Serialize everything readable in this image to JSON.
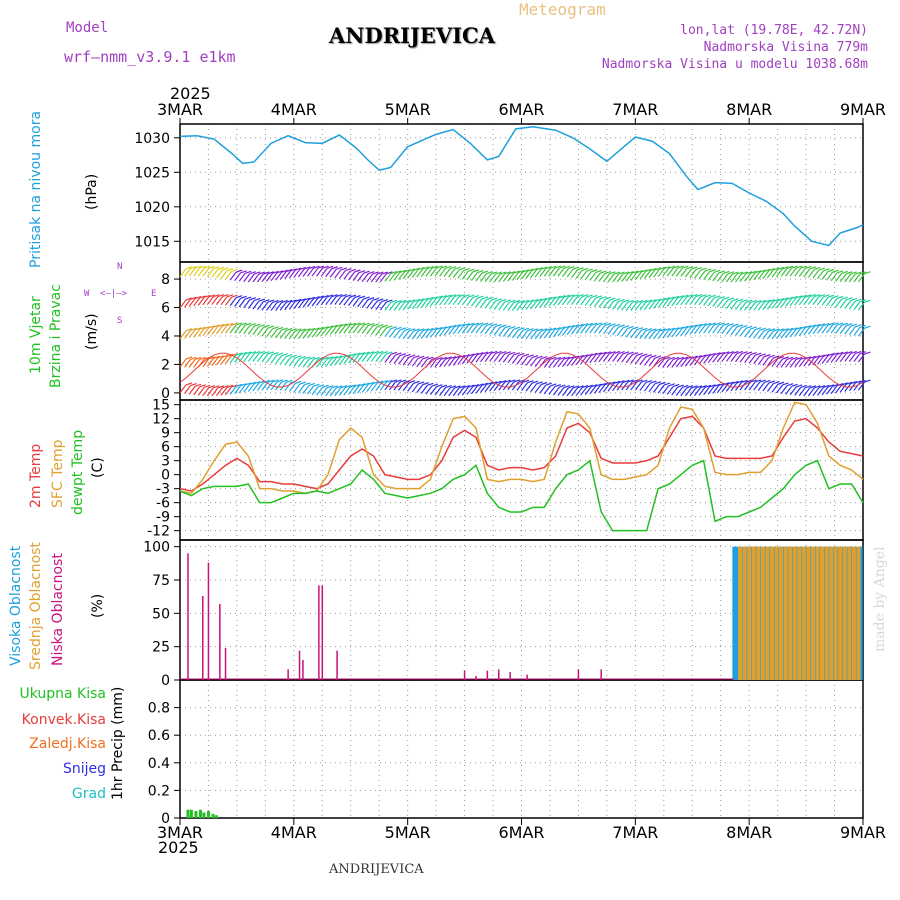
{
  "header": {
    "model_label": "Model",
    "model_name": "wrf—nmm_v3.9.1  e1km",
    "title": "ANDRIJEVICA",
    "meteogram_label": "Meteogram",
    "coords": "lon,lat (19.78E, 42.72N)",
    "elevation": "Nadmorska Visina 779m",
    "elevation_model": "Nadmorska Visina u modelu 1038.68m",
    "year_top": "2025",
    "year_bottom": "2025",
    "bottom_title": "ANDRIJEVICA",
    "credit": "made by Angel"
  },
  "colors": {
    "pressure": "#1ea0dc",
    "temp_2m": "#e83c3c",
    "temp_sfc": "#e0a030",
    "dewpoint": "#22c022",
    "cloud_high": "#1ea0dc",
    "cloud_mid": "#e0a030",
    "cloud_low": "#c8127a",
    "precip_total": "#22c022",
    "precip_conv": "#e83c3c",
    "precip_frz": "#f07020",
    "precip_snow": "#3030e0",
    "precip_grad": "#20c0c0",
    "model_purple": "#a040c0"
  },
  "x_axis": {
    "dates": [
      "3MAR",
      "4MAR",
      "5MAR",
      "6MAR",
      "7MAR",
      "8MAR",
      "9MAR"
    ]
  },
  "panels": {
    "pressure": {
      "label": "Pritisak na nivou mora",
      "unit": "(hPa)"
    },
    "wind": {
      "label1": "10m Vjetar",
      "label2": "Brzina i Pravac",
      "unit": "(m/s)",
      "compass_n": "N",
      "compass_s": "S",
      "compass_w": "W",
      "compass_e": "E",
      "compass_arrows": "<—|—>"
    },
    "temp": {
      "label_2m": "2m Temp",
      "label_sfc": "SFC Temp",
      "label_dew": "dewpt Temp",
      "unit": "(C)"
    },
    "cloud": {
      "label_high": "Visoka Oblacnost",
      "label_mid": "Srednja Oblacnost",
      "label_low": "Niska Oblacnost",
      "unit": "(%)"
    },
    "precip": {
      "label_total": "Ukupna Kisa",
      "label_conv": "Konvek.Kisa",
      "label_frz": "Zaledj.Kisa",
      "label_snow": "Snijeg",
      "label_grad": "Grad",
      "unit": "1hr Precip (mm)"
    }
  },
  "chart_data": [
    {
      "type": "line",
      "title": "Pritisak na nivou mora",
      "ylabel": "(hPa)",
      "ylim": [
        1012,
        1032
      ],
      "yticks": [
        1015,
        1020,
        1025,
        1030
      ],
      "x_unit": "days from 3MAR 00UTC",
      "series": [
        {
          "x": [
            0,
            0.15,
            0.3,
            0.45,
            0.55,
            0.65,
            0.8,
            0.95,
            1.1,
            1.25,
            1.4,
            1.55,
            1.65,
            1.75,
            1.85,
            2.0,
            2.15,
            2.25,
            2.4,
            2.55,
            2.7,
            2.8,
            2.95,
            3.1,
            3.3,
            3.45,
            3.6,
            3.75,
            3.85,
            4.0,
            4.15,
            4.3,
            4.45,
            4.55,
            4.7,
            4.85,
            5.0,
            5.15,
            5.3,
            5.4,
            5.55,
            5.7,
            5.8,
            5.95,
            6.0
          ],
          "values": [
            1030.2,
            1030.3,
            1029.8,
            1027.8,
            1026.3,
            1026.5,
            1029.2,
            1030.3,
            1029.3,
            1029.2,
            1030.4,
            1028.5,
            1026.8,
            1025.3,
            1025.7,
            1028.7,
            1029.8,
            1030.5,
            1031.2,
            1029.2,
            1026.8,
            1027.3,
            1031.3,
            1031.6,
            1031.1,
            1030.0,
            1028.4,
            1026.6,
            1028.0,
            1030.1,
            1029.5,
            1027.7,
            1024.4,
            1022.5,
            1023.5,
            1023.4,
            1022.0,
            1020.8,
            1019.0,
            1017.2,
            1015.0,
            1014.4,
            1016.2,
            1017.0,
            1017.4
          ]
        }
      ]
    },
    {
      "type": "barbs",
      "title": "10m Vjetar Brzina i Pravac",
      "ylabel": "(m/s)",
      "ylim": [
        -0.5,
        9.2
      ],
      "yticks": [
        0,
        2,
        4,
        6,
        8
      ],
      "note": "wind barbs at levels 0,2,4,6,8 with gusty speed trace"
    },
    {
      "type": "line",
      "title": "2m / SFC / dewpoint Temp",
      "ylabel": "(C)",
      "ylim": [
        -14,
        16
      ],
      "yticks": [
        -12,
        -9,
        -6,
        -3,
        0,
        3,
        6,
        9,
        12,
        15
      ],
      "x_unit": "days from 3MAR 00UTC",
      "series": [
        {
          "name": "2m Temp",
          "x": [
            0,
            0.1,
            0.2,
            0.3,
            0.4,
            0.5,
            0.6,
            0.7,
            0.8,
            0.9,
            1.0,
            1.1,
            1.2,
            1.3,
            1.4,
            1.5,
            1.6,
            1.7,
            1.8,
            1.9,
            2.0,
            2.1,
            2.2,
            2.3,
            2.4,
            2.5,
            2.6,
            2.7,
            2.8,
            2.9,
            3.0,
            3.1,
            3.2,
            3.3,
            3.4,
            3.5,
            3.6,
            3.7,
            3.8,
            3.9,
            4.0,
            4.1,
            4.2,
            4.3,
            4.4,
            4.5,
            4.6,
            4.7,
            4.8,
            4.9,
            5.0,
            5.1,
            5.2,
            5.3,
            5.4,
            5.5,
            5.6,
            5.7,
            5.8,
            5.9,
            6.0
          ],
          "values": [
            -3,
            -3.5,
            -2,
            0,
            2,
            3.5,
            2,
            -1.5,
            -1.5,
            -2,
            -2,
            -2.5,
            -3,
            -2,
            1,
            4,
            5.5,
            4,
            0,
            -0.5,
            -1,
            -1,
            0,
            3,
            8,
            9.5,
            8,
            2,
            1,
            1.5,
            1.5,
            1,
            1.5,
            4,
            10,
            11,
            9,
            3.5,
            2.5,
            2.5,
            2.5,
            3,
            4,
            8,
            12,
            12.5,
            10,
            4,
            3.5,
            3.5,
            3.5,
            3.5,
            4,
            8,
            11.5,
            12,
            10,
            7,
            5,
            4.5,
            4
          ]
        },
        {
          "name": "SFC Temp",
          "x": [
            0,
            0.1,
            0.2,
            0.3,
            0.4,
            0.5,
            0.6,
            0.7,
            0.8,
            0.9,
            1.0,
            1.1,
            1.2,
            1.3,
            1.4,
            1.5,
            1.6,
            1.7,
            1.8,
            1.9,
            2.0,
            2.1,
            2.2,
            2.3,
            2.4,
            2.5,
            2.6,
            2.7,
            2.8,
            2.9,
            3.0,
            3.1,
            3.2,
            3.3,
            3.4,
            3.5,
            3.6,
            3.7,
            3.8,
            3.9,
            4.0,
            4.1,
            4.2,
            4.3,
            4.4,
            4.5,
            4.6,
            4.7,
            4.8,
            4.9,
            5.0,
            5.1,
            5.2,
            5.3,
            5.4,
            5.5,
            5.6,
            5.7,
            5.8,
            5.9,
            6.0
          ],
          "values": [
            -3.5,
            -4,
            -1,
            3,
            6.5,
            7,
            4,
            -3,
            -3,
            -3.5,
            -3.5,
            -4,
            -3.5,
            0,
            7.5,
            10,
            8,
            0,
            -2.5,
            -3,
            -3,
            -3,
            -1,
            6,
            12,
            12.5,
            10,
            -1,
            -1.5,
            -1,
            -1,
            -1.5,
            -1,
            7,
            13.5,
            13,
            10,
            0,
            -1,
            -1,
            -0.5,
            0,
            2,
            10,
            14.5,
            14,
            10,
            0.5,
            0,
            0,
            0.5,
            0.5,
            3,
            10,
            15.5,
            15,
            11,
            4,
            2,
            1,
            -1
          ]
        },
        {
          "name": "dewpt Temp",
          "x": [
            0,
            0.1,
            0.2,
            0.3,
            0.4,
            0.5,
            0.6,
            0.7,
            0.8,
            0.9,
            1.0,
            1.1,
            1.2,
            1.3,
            1.4,
            1.5,
            1.6,
            1.7,
            1.8,
            1.9,
            2.0,
            2.1,
            2.2,
            2.3,
            2.4,
            2.5,
            2.6,
            2.7,
            2.8,
            2.9,
            3.0,
            3.1,
            3.2,
            3.3,
            3.4,
            3.5,
            3.6,
            3.7,
            3.8,
            3.9,
            4.0,
            4.1,
            4.2,
            4.3,
            4.4,
            4.5,
            4.6,
            4.7,
            4.8,
            4.9,
            5.0,
            5.1,
            5.2,
            5.3,
            5.4,
            5.5,
            5.6,
            5.7,
            5.8,
            5.9,
            6.0
          ],
          "values": [
            -3.5,
            -4.5,
            -3,
            -2.5,
            -2.5,
            -2.5,
            -2,
            -6,
            -6,
            -5,
            -4,
            -4,
            -3.5,
            -4,
            -3,
            -2,
            1,
            -1,
            -4,
            -4.5,
            -5,
            -4.5,
            -4,
            -3,
            -1,
            0,
            2,
            -4,
            -7,
            -8,
            -8,
            -7,
            -7,
            -3,
            0,
            1,
            3,
            -8,
            -12,
            -12,
            -12,
            -12,
            -3,
            -2,
            0,
            2,
            3,
            -10,
            -9,
            -9,
            -8,
            -7,
            -5,
            -3,
            0,
            2,
            3,
            -3,
            -2,
            -2,
            -6
          ]
        }
      ]
    },
    {
      "type": "bar",
      "title": "Oblacnost",
      "ylabel": "(%)",
      "ylim": [
        0,
        105
      ],
      "yticks": [
        0,
        25,
        50,
        75,
        100
      ],
      "x_unit": "days from 3MAR 00UTC",
      "series": [
        {
          "name": "Niska Oblacnost",
          "x": [
            0.07,
            0.2,
            0.25,
            0.35,
            0.4,
            0.95,
            1.05,
            1.08,
            1.22,
            1.25,
            1.38,
            2.5,
            2.6,
            2.7,
            2.8,
            2.9,
            3.05,
            3.5,
            3.7
          ],
          "values": [
            95,
            63,
            88,
            57,
            24,
            8,
            22,
            15,
            71,
            71,
            22,
            7,
            3,
            7,
            8,
            6,
            4,
            8,
            8
          ]
        },
        {
          "name": "Visoka Oblacnost",
          "x": [
            4.87,
            4.9,
            4.94,
            4.98,
            5.02,
            5.06,
            5.1,
            5.14,
            5.18,
            5.22,
            5.26,
            5.3,
            5.34,
            5.38,
            5.42,
            5.46,
            5.5,
            5.54,
            5.58,
            5.62,
            5.66,
            5.7,
            5.74,
            5.78,
            5.82,
            5.86,
            5.9,
            5.94,
            5.98
          ],
          "values": [
            100,
            100,
            100,
            100,
            100,
            100,
            100,
            100,
            100,
            100,
            100,
            100,
            100,
            100,
            100,
            100,
            100,
            100,
            100,
            100,
            100,
            100,
            100,
            100,
            100,
            100,
            100,
            100,
            100
          ]
        },
        {
          "name": "Srednja Oblacnost",
          "x": [
            4.92,
            4.96,
            5.0,
            5.04,
            5.08,
            5.12,
            5.16,
            5.2,
            5.24,
            5.28,
            5.32,
            5.36,
            5.4,
            5.44,
            5.48,
            5.52,
            5.56,
            5.6,
            5.64,
            5.68,
            5.72,
            5.76,
            5.8,
            5.84,
            5.88,
            5.92,
            5.96
          ],
          "values": [
            100,
            100,
            100,
            100,
            100,
            100,
            100,
            100,
            100,
            100,
            100,
            100,
            100,
            100,
            100,
            100,
            100,
            100,
            100,
            100,
            100,
            100,
            100,
            100,
            100,
            100,
            100
          ]
        }
      ]
    },
    {
      "type": "bar",
      "title": "1hr Precip",
      "ylabel": "1hr Precip (mm)",
      "ylim": [
        0,
        1.0
      ],
      "yticks": [
        0,
        0.2,
        0.4,
        0.6,
        0.8
      ],
      "x_unit": "days from 3MAR 00UTC",
      "series": [
        {
          "name": "Ukupna Kisa",
          "x": [
            0.07,
            0.1,
            0.14,
            0.18,
            0.21,
            0.25,
            0.29,
            0.32
          ],
          "values": [
            0.06,
            0.06,
            0.05,
            0.06,
            0.04,
            0.05,
            0.03,
            0.02
          ]
        }
      ]
    }
  ]
}
